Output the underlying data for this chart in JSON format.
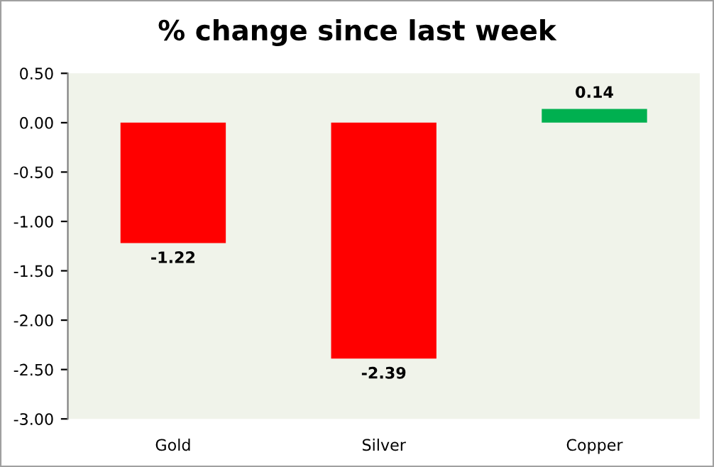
{
  "chart_data": {
    "type": "bar",
    "title": "% change since last week",
    "categories": [
      "Gold",
      "Silver",
      "Copper"
    ],
    "values": [
      -1.22,
      -2.39,
      0.14
    ],
    "colors": [
      "#ff0000",
      "#ff0000",
      "#00b050"
    ],
    "ylim": [
      -3.0,
      0.5
    ],
    "yticks": [
      {
        "value": 0.5,
        "label": "0.50"
      },
      {
        "value": 0.0,
        "label": "0.00"
      },
      {
        "value": -0.5,
        "label": "-0.50"
      },
      {
        "value": -1.0,
        "label": "-1.00"
      },
      {
        "value": -1.5,
        "label": "-1.50"
      },
      {
        "value": -2.0,
        "label": "-2.00"
      },
      {
        "value": -2.5,
        "label": "-2.50"
      },
      {
        "value": -3.0,
        "label": "-3.00"
      }
    ],
    "data_labels": true,
    "grid": false,
    "legend": false
  }
}
